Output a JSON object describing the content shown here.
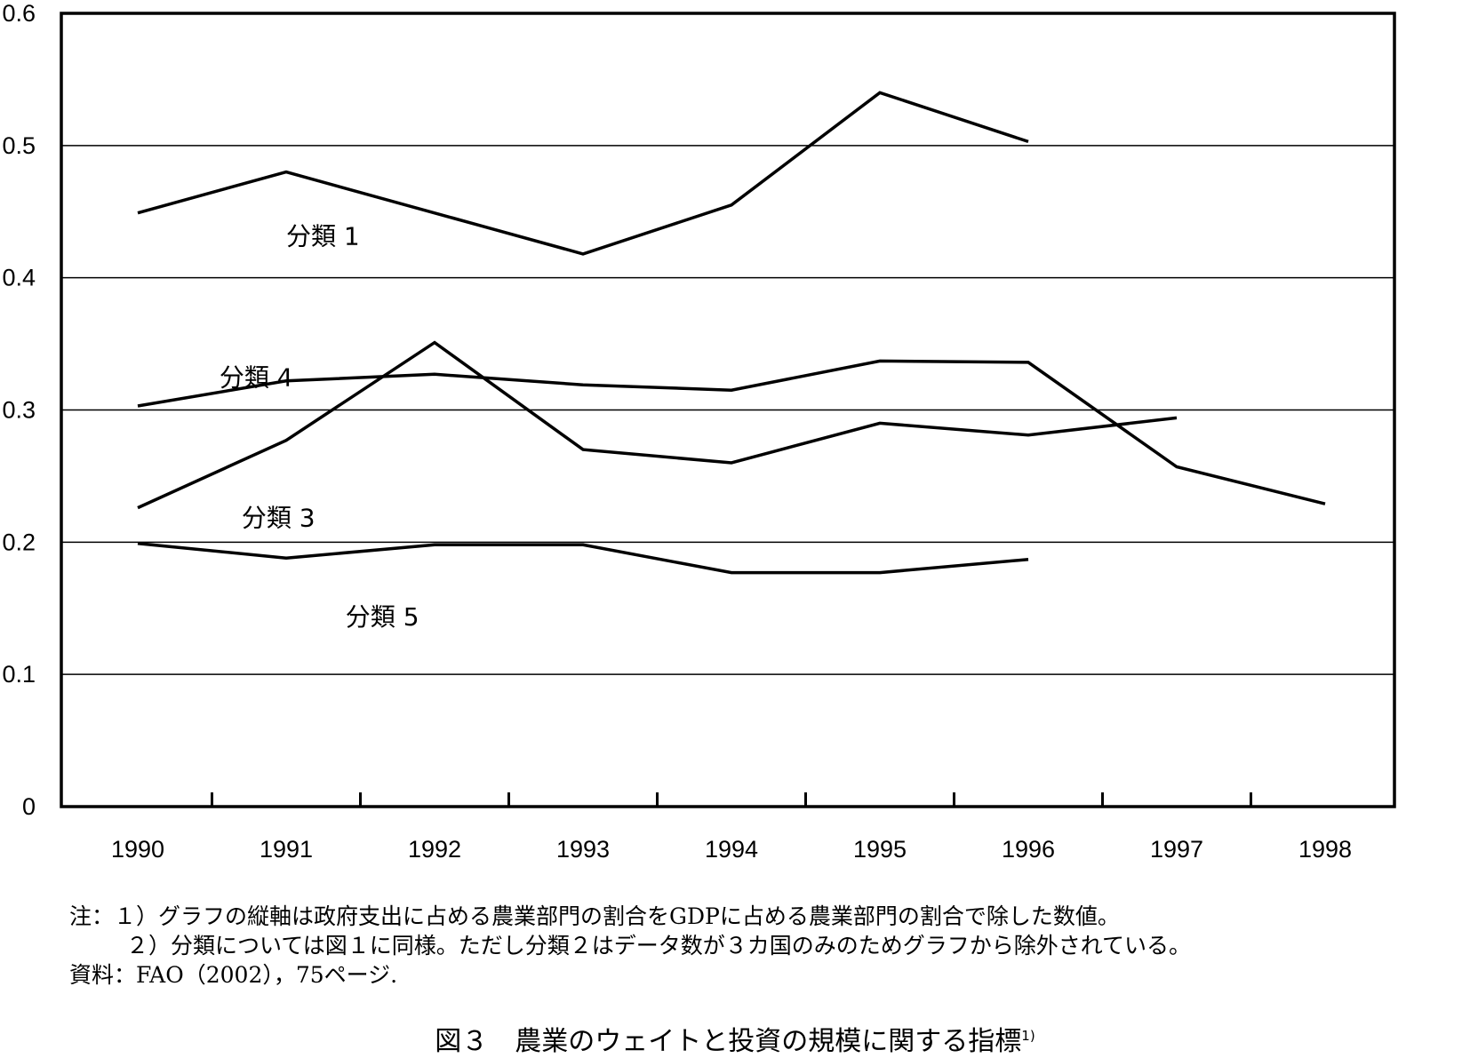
{
  "chart_data": {
    "type": "line",
    "title": "",
    "xlabel": "",
    "ylabel": "",
    "categories": [
      "1990",
      "1991",
      "1992",
      "1993",
      "1994",
      "1995",
      "1996",
      "1997",
      "1998"
    ],
    "ylim": [
      0,
      0.6
    ],
    "yticks": [
      "0",
      "0.1",
      "0.2",
      "0.3",
      "0.4",
      "0.5",
      "0.6"
    ],
    "grid": "horizontal",
    "series": [
      {
        "name": "分類 1",
        "points": [
          [
            1990,
            0.449
          ],
          [
            1991,
            0.48
          ],
          [
            1993,
            0.418
          ],
          [
            1994,
            0.455
          ],
          [
            1995,
            0.54
          ],
          [
            1996,
            0.503
          ]
        ]
      },
      {
        "name": "",
        "points": [
          [
            1990,
            0.303
          ],
          [
            1991,
            0.322
          ],
          [
            1992,
            0.327
          ],
          [
            1993,
            0.319
          ],
          [
            1994,
            0.315
          ],
          [
            1995,
            0.337
          ],
          [
            1996,
            0.336
          ],
          [
            1997,
            0.257
          ],
          [
            1998,
            0.229
          ]
        ]
      },
      {
        "name": "分類 4",
        "points": [
          [
            1990,
            0.226
          ],
          [
            1991,
            0.277
          ],
          [
            1992,
            0.351
          ],
          [
            1993,
            0.27
          ],
          [
            1994,
            0.26
          ],
          [
            1995,
            0.29
          ],
          [
            1996,
            0.281
          ],
          [
            1997,
            0.294
          ]
        ]
      },
      {
        "name": "分類 5",
        "points": [
          [
            1990,
            0.199
          ],
          [
            1991,
            0.188
          ],
          [
            1992,
            0.198
          ],
          [
            1993,
            0.198
          ],
          [
            1994,
            0.177
          ],
          [
            1995,
            0.177
          ],
          [
            1996,
            0.187
          ]
        ]
      }
    ],
    "labels": [
      {
        "text": "分類 1",
        "x": 1991.0,
        "y": 0.425
      },
      {
        "text": "分類 4",
        "x": 1990.55,
        "y": 0.318
      },
      {
        "text": "分類 3",
        "x": 1990.7,
        "y": 0.212
      },
      {
        "text": "分類 5",
        "x": 1991.4,
        "y": 0.137
      }
    ]
  },
  "notes": {
    "note1": "注：１）グラフの縦軸は政府支出に占める農業部門の割合をGDPに占める農業部門の割合で除した数値。",
    "note2": "２）分類については図１に同様。ただし分類２はデータ数が３カ国のみのためグラフから除外されている。",
    "source": "資料：FAO（2002），75ページ."
  },
  "caption": {
    "text": "図３　農業のウェイトと投資の規模に関する指標",
    "superscript": "1)"
  }
}
